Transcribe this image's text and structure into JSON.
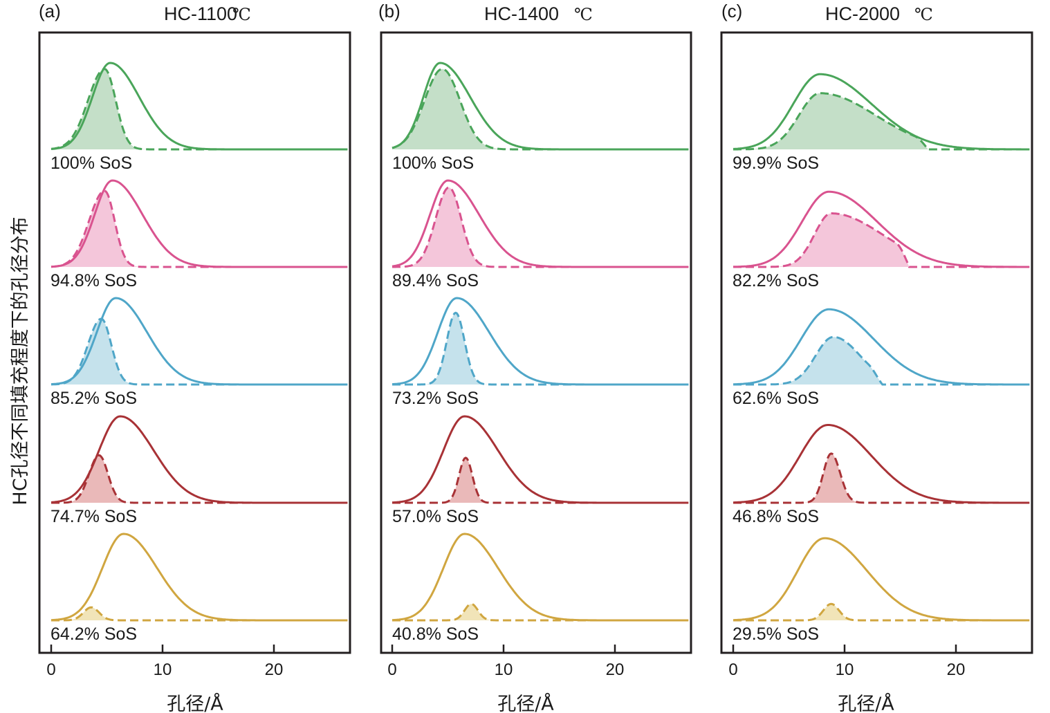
{
  "chart_data": {
    "type": "line",
    "title": "HC孔径不同填充程度下的孔径分布",
    "ylabel": "HC孔径不同填充程度下的孔径分布",
    "xlabel": "孔径/Å",
    "xlim": [
      -1,
      27
    ],
    "xticks": [
      0,
      10,
      20
    ],
    "grid": false,
    "legend": "none",
    "styles": {
      "solid": "total pore size distribution",
      "dashed_filled": "filled pore size distribution"
    },
    "row_colors": [
      {
        "line": "#4aa55a",
        "fill": "#c4dfc8"
      },
      {
        "line": "#d9538f",
        "fill": "#f4c6da"
      },
      {
        "line": "#4fa6c8",
        "fill": "#c5e2ec"
      },
      {
        "line": "#a83236",
        "fill": "#eab9b9"
      },
      {
        "line": "#d0a640",
        "fill": "#f1e4b8"
      }
    ],
    "panels": [
      {
        "letter": "(a)",
        "title": "HC-1100",
        "unit": "℃",
        "rows": [
          {
            "label": "100% SoS",
            "solid": {
              "peak_x": 5.3,
              "peak_y": 1.0,
              "sigma_left": 1.6,
              "sigma_right": 2.6
            },
            "dashed": {
              "peak_x": 4.8,
              "peak_y": 0.93,
              "sigma_left": 1.5,
              "sigma_right": 1.0
            }
          },
          {
            "label": "94.8% SoS",
            "solid": {
              "peak_x": 5.5,
              "peak_y": 1.0,
              "sigma_left": 1.6,
              "sigma_right": 2.7
            },
            "dashed": {
              "peak_x": 4.8,
              "peak_y": 0.88,
              "sigma_left": 1.4,
              "sigma_right": 0.9
            }
          },
          {
            "label": "85.2% SoS",
            "solid": {
              "peak_x": 5.8,
              "peak_y": 1.0,
              "sigma_left": 1.7,
              "sigma_right": 2.8
            },
            "dashed": {
              "peak_x": 4.5,
              "peak_y": 0.76,
              "sigma_left": 1.2,
              "sigma_right": 0.9
            }
          },
          {
            "label": "74.7% SoS",
            "solid": {
              "peak_x": 6.2,
              "peak_y": 1.0,
              "sigma_left": 1.9,
              "sigma_right": 3.0
            },
            "dashed": {
              "peak_x": 4.3,
              "peak_y": 0.55,
              "sigma_left": 0.9,
              "sigma_right": 0.8
            }
          },
          {
            "label": "64.2% SoS",
            "solid": {
              "peak_x": 6.5,
              "peak_y": 1.0,
              "sigma_left": 1.9,
              "sigma_right": 3.0
            },
            "dashed": {
              "peak_x": 3.6,
              "peak_y": 0.15,
              "sigma_left": 0.7,
              "sigma_right": 0.7
            }
          }
        ]
      },
      {
        "letter": "(b)",
        "title": "HC-1400",
        "unit": "℃",
        "rows": [
          {
            "label": "100% SoS",
            "solid": {
              "peak_x": 4.3,
              "peak_y": 1.0,
              "sigma_left": 1.5,
              "sigma_right": 2.7
            },
            "dashed": {
              "peak_x": 4.5,
              "peak_y": 0.93,
              "sigma_left": 1.6,
              "sigma_right": 1.6
            }
          },
          {
            "label": "89.4% SoS",
            "solid": {
              "peak_x": 5.0,
              "peak_y": 1.0,
              "sigma_left": 1.6,
              "sigma_right": 2.8
            },
            "dashed": {
              "peak_x": 5.1,
              "peak_y": 0.92,
              "sigma_left": 1.2,
              "sigma_right": 1.1
            }
          },
          {
            "label": "73.2% SoS",
            "solid": {
              "peak_x": 5.8,
              "peak_y": 1.0,
              "sigma_left": 1.7,
              "sigma_right": 2.9
            },
            "dashed": {
              "peak_x": 5.7,
              "peak_y": 0.83,
              "sigma_left": 0.8,
              "sigma_right": 0.8
            }
          },
          {
            "label": "57.0% SoS",
            "solid": {
              "peak_x": 6.5,
              "peak_y": 1.0,
              "sigma_left": 1.9,
              "sigma_right": 3.0
            },
            "dashed": {
              "peak_x": 6.6,
              "peak_y": 0.52,
              "sigma_left": 0.6,
              "sigma_right": 0.6
            }
          },
          {
            "label": "40.8% SoS",
            "solid": {
              "peak_x": 6.5,
              "peak_y": 1.0,
              "sigma_left": 1.9,
              "sigma_right": 3.0
            },
            "dashed": {
              "peak_x": 7.1,
              "peak_y": 0.19,
              "sigma_left": 0.6,
              "sigma_right": 0.6
            }
          }
        ]
      },
      {
        "letter": "(c)",
        "title": "HC-2000",
        "unit": "℃",
        "rows": [
          {
            "label": "99.9% SoS",
            "solid": {
              "peak_x": 7.8,
              "peak_y": 0.87,
              "sigma_left": 2.4,
              "sigma_right": 4.6
            },
            "dashed": {
              "peak_x": 7.8,
              "peak_y": 0.65,
              "sigma_left": 1.9,
              "sigma_right": 5.0,
              "cut_x": 17.5
            }
          },
          {
            "label": "82.2% SoS",
            "solid": {
              "peak_x": 8.6,
              "peak_y": 0.87,
              "sigma_left": 2.4,
              "sigma_right": 4.3
            },
            "dashed": {
              "peak_x": 8.8,
              "peak_y": 0.62,
              "sigma_left": 1.5,
              "sigma_right": 4.6,
              "cut_x": 15.8
            }
          },
          {
            "label": "62.6% SoS",
            "solid": {
              "peak_x": 8.6,
              "peak_y": 0.87,
              "sigma_left": 2.5,
              "sigma_right": 4.0
            },
            "dashed": {
              "peak_x": 9.0,
              "peak_y": 0.55,
              "sigma_left": 1.6,
              "sigma_right": 2.4,
              "cut_x": 13.4
            }
          },
          {
            "label": "46.8% SoS",
            "solid": {
              "peak_x": 8.5,
              "peak_y": 0.9,
              "sigma_left": 2.5,
              "sigma_right": 3.9
            },
            "dashed": {
              "peak_x": 8.8,
              "peak_y": 0.57,
              "sigma_left": 0.7,
              "sigma_right": 0.8
            }
          },
          {
            "label": "29.5% SoS",
            "solid": {
              "peak_x": 8.2,
              "peak_y": 0.95,
              "sigma_left": 2.4,
              "sigma_right": 3.8
            },
            "dashed": {
              "peak_x": 8.8,
              "peak_y": 0.19,
              "sigma_left": 0.7,
              "sigma_right": 0.7
            }
          }
        ]
      }
    ]
  }
}
